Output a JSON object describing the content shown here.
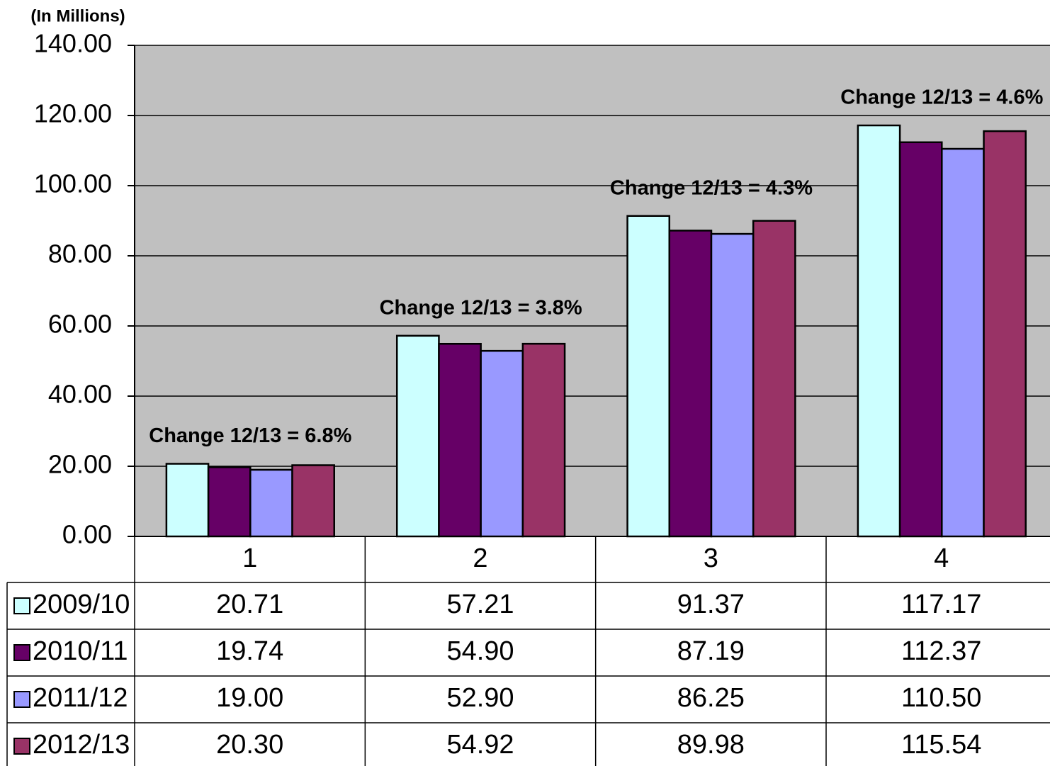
{
  "chart_data": {
    "type": "bar",
    "ylabel": "(In Millions)",
    "categories": [
      "1",
      "2",
      "3",
      "4"
    ],
    "series": [
      {
        "name": "2009/10",
        "color": "#ccffff",
        "values": [
          20.71,
          57.21,
          91.37,
          117.17
        ],
        "value_labels": [
          "20.71",
          "57.21",
          "91.37",
          "117.17"
        ]
      },
      {
        "name": "2010/11",
        "color": "#660066",
        "values": [
          19.74,
          54.9,
          87.19,
          112.37
        ],
        "value_labels": [
          "19.74",
          "54.90",
          "87.19",
          "112.37"
        ]
      },
      {
        "name": "2011/12",
        "color": "#9999ff",
        "values": [
          19.0,
          52.9,
          86.25,
          110.5
        ],
        "value_labels": [
          "19.00",
          "52.90",
          "86.25",
          "110.50"
        ]
      },
      {
        "name": "2012/13",
        "color": "#993366",
        "values": [
          20.3,
          54.92,
          89.98,
          115.54
        ],
        "value_labels": [
          "20.30",
          "54.92",
          "89.98",
          "115.54"
        ]
      }
    ],
    "annotations": [
      "Change 12/13 = 6.8%",
      "Change 12/13 = 3.8%",
      "Change 12/13 = 4.3%",
      "Change 12/13 = 4.6%"
    ],
    "ylim": [
      0,
      140
    ],
    "yticks": [
      {
        "value": 0,
        "label": "0.00"
      },
      {
        "value": 20,
        "label": "20.00"
      },
      {
        "value": 40,
        "label": "40.00"
      },
      {
        "value": 60,
        "label": "60.00"
      },
      {
        "value": 80,
        "label": "80.00"
      },
      {
        "value": 100,
        "label": "100.00"
      },
      {
        "value": 120,
        "label": "120.00"
      },
      {
        "value": 140,
        "label": "140.00"
      }
    ],
    "grid": true,
    "plot_background": "#c0c0c0"
  }
}
